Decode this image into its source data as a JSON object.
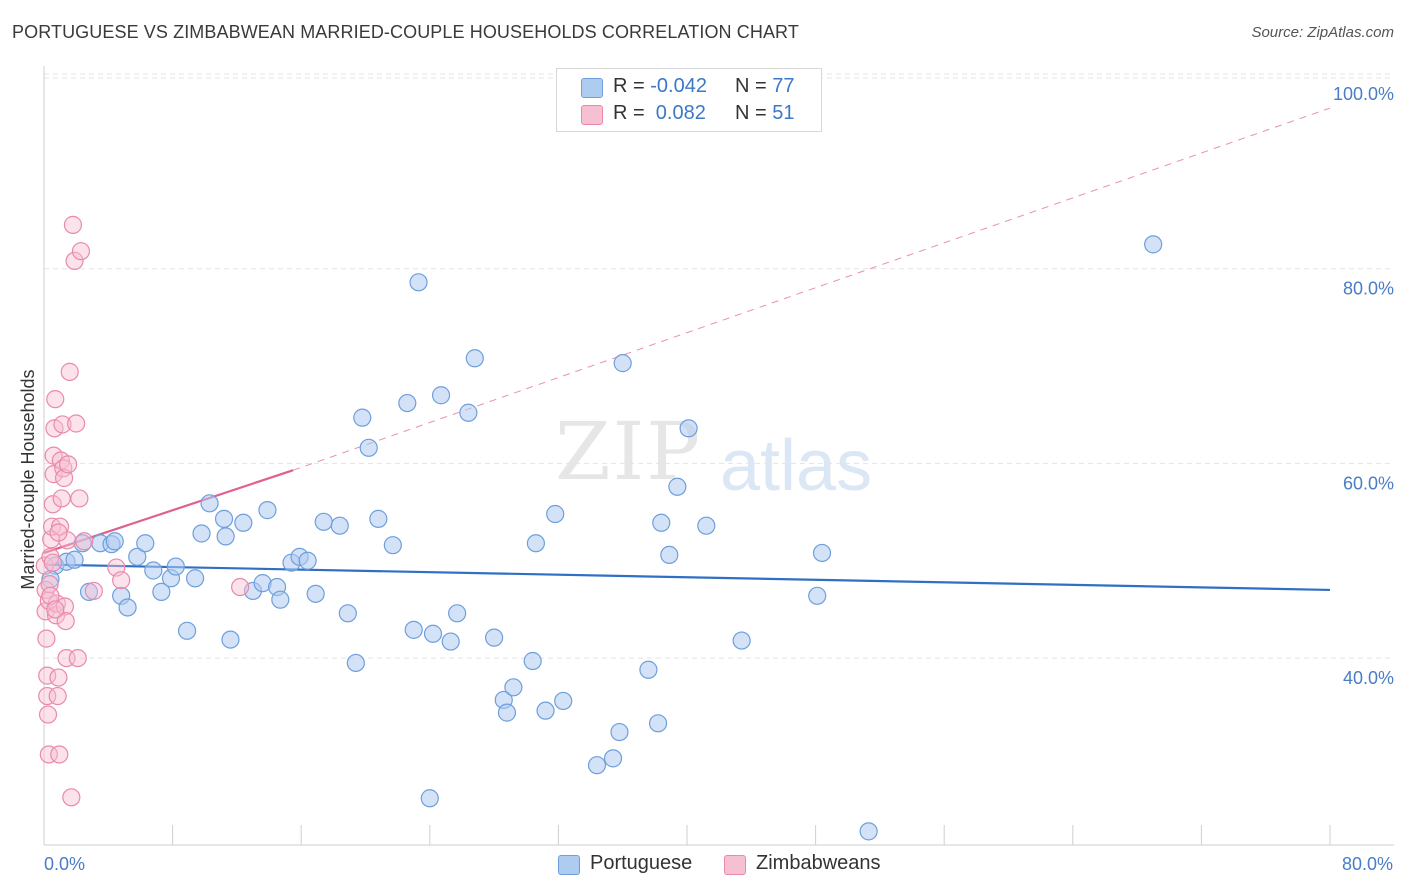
{
  "title": "PORTUGUESE VS ZIMBABWEAN MARRIED-COUPLE HOUSEHOLDS CORRELATION CHART",
  "source": "Source: ZipAtlas.com",
  "watermark": {
    "zip": "ZIP",
    "atlas": "atlas"
  },
  "legend": {
    "rows": [
      {
        "r_label": "R =",
        "r_value": "-0.042",
        "n_label": "N =",
        "n_value": "77",
        "color": "#aecbf0"
      },
      {
        "r_label": "R =",
        "r_value": " 0.082",
        "n_label": "N =",
        "n_value": "51",
        "color": "#f7bfd2"
      }
    ]
  },
  "bottom_legend": [
    {
      "label": "Portuguese",
      "color": "#aecbf0"
    },
    {
      "label": "Zimbabweans",
      "color": "#f7bfd2"
    }
  ],
  "colors": {
    "blue_fill": "#aecbf0",
    "blue_stroke": "#6e9fdc",
    "blue_line": "#2f6fc4",
    "pink_fill": "#f7bfd2",
    "pink_stroke": "#e98aab",
    "pink_line": "#e0608f",
    "grid": "#e4e4e4",
    "tick_text": "#4a7cc7"
  },
  "chart_data": {
    "type": "scatter",
    "title": "PORTUGUESE VS ZIMBABWEAN MARRIED-COUPLE HOUSEHOLDS CORRELATION CHART",
    "xlabel": "",
    "ylabel": "Married-couple Households",
    "xlim": [
      0,
      80
    ],
    "ylim": [
      20.8,
      100
    ],
    "x_tick_labels": [
      "0.0%",
      "80.0%"
    ],
    "y_ticks": [
      40,
      60,
      80,
      100
    ],
    "y_tick_labels": [
      "40.0%",
      "60.0%",
      "80.0%",
      "100.0%"
    ],
    "series": [
      {
        "name": "Portuguese",
        "R": -0.042,
        "N": 77,
        "trend": {
          "x": [
            0.3,
            80
          ],
          "y": [
            49.6,
            47.0
          ],
          "style": "solid"
        },
        "points": [
          [
            0.7,
            49.5
          ],
          [
            1.4,
            49.9
          ],
          [
            1.9,
            50.1
          ],
          [
            2.4,
            51.8
          ],
          [
            2.8,
            46.8
          ],
          [
            3.5,
            51.8
          ],
          [
            4.2,
            51.7
          ],
          [
            4.4,
            52.0
          ],
          [
            4.8,
            46.4
          ],
          [
            5.2,
            45.2
          ],
          [
            5.8,
            50.4
          ],
          [
            6.3,
            51.8
          ],
          [
            6.8,
            49.0
          ],
          [
            7.3,
            46.8
          ],
          [
            7.9,
            48.2
          ],
          [
            8.2,
            49.4
          ],
          [
            8.9,
            42.8
          ],
          [
            9.4,
            48.2
          ],
          [
            9.8,
            52.8
          ],
          [
            10.3,
            55.9
          ],
          [
            11.2,
            54.3
          ],
          [
            11.3,
            52.5
          ],
          [
            11.6,
            41.9
          ],
          [
            12.4,
            53.9
          ],
          [
            13.0,
            46.9
          ],
          [
            13.6,
            47.7
          ],
          [
            13.9,
            55.2
          ],
          [
            14.5,
            47.3
          ],
          [
            14.7,
            46.0
          ],
          [
            15.4,
            49.8
          ],
          [
            15.9,
            50.4
          ],
          [
            16.4,
            50.0
          ],
          [
            16.9,
            46.6
          ],
          [
            17.4,
            54.0
          ],
          [
            18.4,
            53.6
          ],
          [
            18.9,
            44.6
          ],
          [
            19.4,
            39.5
          ],
          [
            19.8,
            64.7
          ],
          [
            20.2,
            61.6
          ],
          [
            20.8,
            54.3
          ],
          [
            21.7,
            51.6
          ],
          [
            22.6,
            66.2
          ],
          [
            23.0,
            42.9
          ],
          [
            23.3,
            78.6
          ],
          [
            24.2,
            42.5
          ],
          [
            24.7,
            67.0
          ],
          [
            25.3,
            41.7
          ],
          [
            25.7,
            44.6
          ],
          [
            26.4,
            65.2
          ],
          [
            26.8,
            70.8
          ],
          [
            28.0,
            42.1
          ],
          [
            28.6,
            35.7
          ],
          [
            28.8,
            34.4
          ],
          [
            29.2,
            37.0
          ],
          [
            30.4,
            39.7
          ],
          [
            30.6,
            51.8
          ],
          [
            31.2,
            34.6
          ],
          [
            31.8,
            54.8
          ],
          [
            32.3,
            35.6
          ],
          [
            34.4,
            29.0
          ],
          [
            35.4,
            29.7
          ],
          [
            35.8,
            32.4
          ],
          [
            36.0,
            70.3
          ],
          [
            37.6,
            38.8
          ],
          [
            38.2,
            33.3
          ],
          [
            38.4,
            53.9
          ],
          [
            38.9,
            50.6
          ],
          [
            39.4,
            57.6
          ],
          [
            40.1,
            63.6
          ],
          [
            41.2,
            53.6
          ],
          [
            43.4,
            41.8
          ],
          [
            48.1,
            46.4
          ],
          [
            48.4,
            50.8
          ],
          [
            51.3,
            22.2
          ],
          [
            69.0,
            82.5
          ],
          [
            0.4,
            48.1
          ],
          [
            24.0,
            25.6
          ]
        ]
      },
      {
        "name": "Zimbabweans",
        "R": 0.082,
        "N": 51,
        "trend_solid": {
          "x": [
            0.0,
            15.5
          ],
          "y": [
            50.8,
            59.3
          ]
        },
        "trend_dashed": {
          "x": [
            15.5,
            80.0
          ],
          "y": [
            59.3,
            96.5
          ]
        },
        "points": [
          [
            0.05,
            49.5
          ],
          [
            0.1,
            47.0
          ],
          [
            0.1,
            44.8
          ],
          [
            0.15,
            42.0
          ],
          [
            0.2,
            38.2
          ],
          [
            0.2,
            36.1
          ],
          [
            0.25,
            34.2
          ],
          [
            0.3,
            30.1
          ],
          [
            0.3,
            45.9
          ],
          [
            0.35,
            47.6
          ],
          [
            0.4,
            50.4
          ],
          [
            0.45,
            52.2
          ],
          [
            0.5,
            53.5
          ],
          [
            0.55,
            55.8
          ],
          [
            0.6,
            58.9
          ],
          [
            0.6,
            60.8
          ],
          [
            0.65,
            63.6
          ],
          [
            0.7,
            66.6
          ],
          [
            0.75,
            44.4
          ],
          [
            0.8,
            45.6
          ],
          [
            0.85,
            36.1
          ],
          [
            0.9,
            38.0
          ],
          [
            0.95,
            30.1
          ],
          [
            1.0,
            53.5
          ],
          [
            1.05,
            60.3
          ],
          [
            1.1,
            56.4
          ],
          [
            1.15,
            64.0
          ],
          [
            1.2,
            59.5
          ],
          [
            1.25,
            58.5
          ],
          [
            1.3,
            45.3
          ],
          [
            1.35,
            43.8
          ],
          [
            1.4,
            40.0
          ],
          [
            1.45,
            52.1
          ],
          [
            1.5,
            59.9
          ],
          [
            1.6,
            69.4
          ],
          [
            1.7,
            25.7
          ],
          [
            1.8,
            84.5
          ],
          [
            1.9,
            80.8
          ],
          [
            2.0,
            64.1
          ],
          [
            2.1,
            40.0
          ],
          [
            2.2,
            56.4
          ],
          [
            2.3,
            81.8
          ],
          [
            2.5,
            52.0
          ],
          [
            3.1,
            46.9
          ],
          [
            4.5,
            49.3
          ],
          [
            4.8,
            48.0
          ],
          [
            12.2,
            47.3
          ],
          [
            0.55,
            49.8
          ],
          [
            0.4,
            46.4
          ],
          [
            0.7,
            45.0
          ],
          [
            0.9,
            52.9
          ]
        ]
      }
    ]
  }
}
